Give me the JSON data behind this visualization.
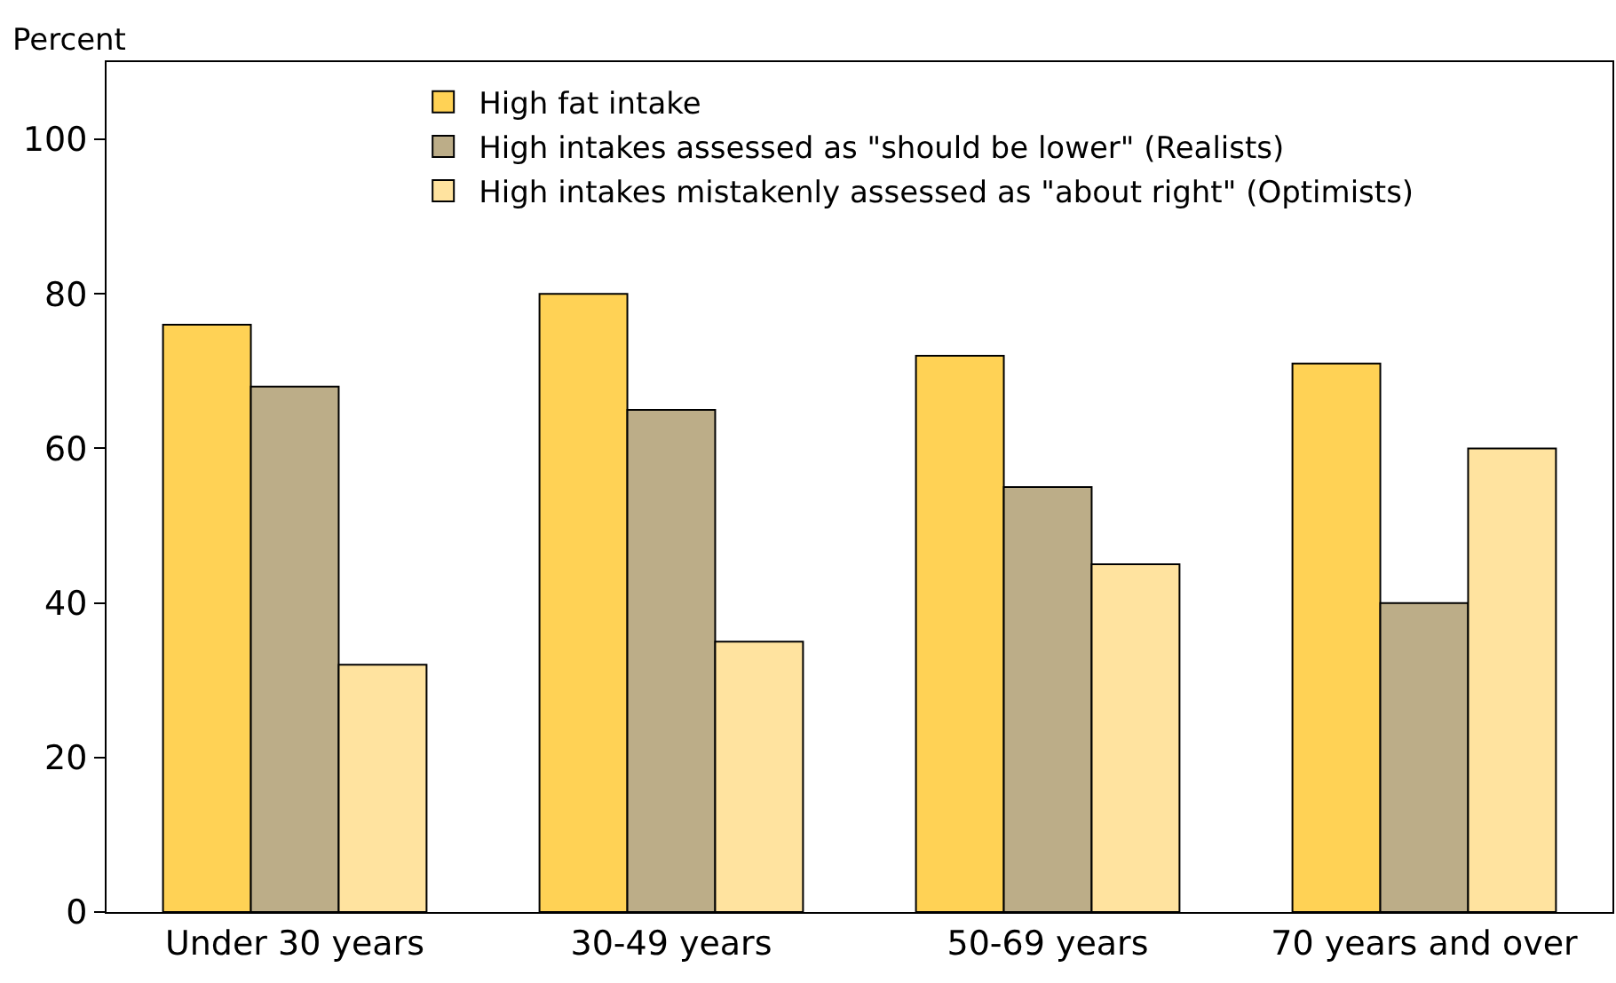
{
  "chart_data": {
    "type": "bar",
    "ylabel": "Percent",
    "categories": [
      "Under 30 years",
      "30-49 years",
      "50-69 years",
      "70 years and over"
    ],
    "series": [
      {
        "name": "High fat intake",
        "color": "#ffd255",
        "values": [
          76,
          80,
          72,
          71
        ]
      },
      {
        "name": "High intakes assessed as \"should be lower\" (Realists)",
        "color": "#bcad88",
        "values": [
          68,
          65,
          55,
          40
        ]
      },
      {
        "name": "High intakes mistakenly assessed as \"about right\" (Optimists)",
        "color": "#ffe39f",
        "values": [
          32,
          35,
          45,
          60
        ]
      }
    ],
    "ylim": [
      0,
      110
    ],
    "yticks": [
      0,
      20,
      40,
      60,
      80,
      100
    ],
    "legend": "top"
  }
}
